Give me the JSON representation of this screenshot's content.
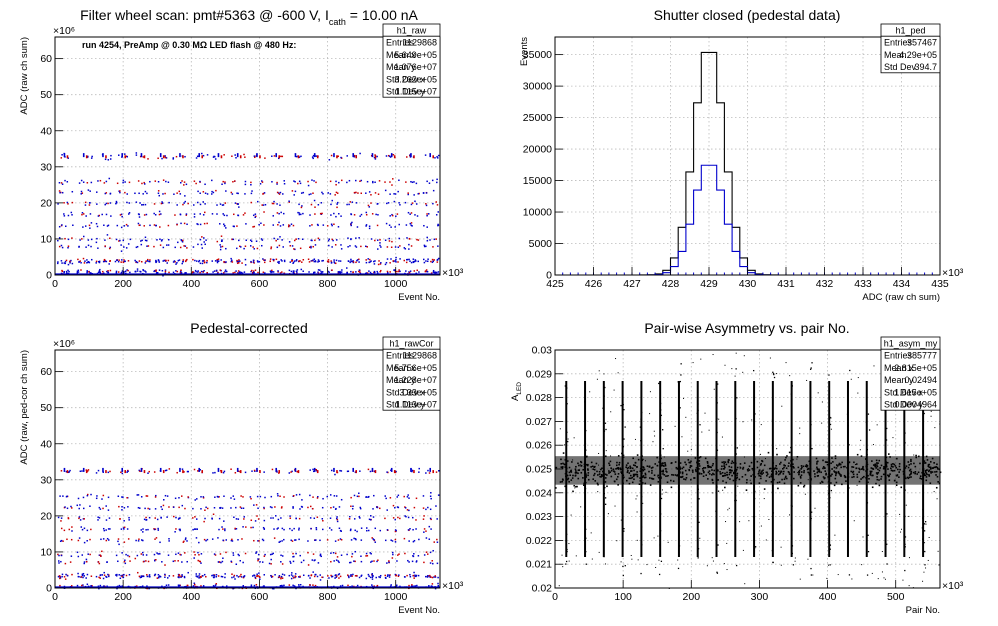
{
  "chart_data": [
    {
      "type": "scatter",
      "id": "raw",
      "title_main": "Filter wheel scan: pmt#5363 @  -600 V, I",
      "title_sub": "cath",
      "title_tail": " = 10.00 nA",
      "xlabel": "Event No.",
      "ylabel": "ADC (raw ch sum)",
      "x_exponent": "×10³",
      "y_exponent": "×10⁶",
      "xlim": [
        0,
        1130
      ],
      "ylim": [
        0,
        66
      ],
      "xticks": [
        "0",
        "200",
        "400",
        "600",
        "800",
        "1000"
      ],
      "yticks": [
        "0",
        "10",
        "20",
        "30",
        "40",
        "50",
        "60"
      ],
      "xtick_values": [
        0,
        200,
        400,
        600,
        800,
        1000
      ],
      "ytick_values": [
        0,
        10,
        20,
        30,
        40,
        50,
        60
      ],
      "annotation": "run 4254, PreAmp @ 0.30 MΩ LED flash @  480 Hz:",
      "bands": [
        1,
        4,
        8,
        10,
        14,
        17,
        20,
        23,
        26,
        33
      ],
      "cycles": 20,
      "stats_name": "h1_raw",
      "stats": [
        [
          "Entries",
          "1129868"
        ],
        [
          "Mean x",
          "5.649e+05"
        ],
        [
          "Mean y",
          "1.076e+07"
        ],
        [
          "Std Dev x",
          "3.262e+05"
        ],
        [
          "Std Dev y",
          "1.115e+07"
        ]
      ],
      "grid": true
    },
    {
      "type": "histogram",
      "id": "ped",
      "title_main": "Shutter closed (pedestal data)",
      "xlabel": "ADC (raw ch sum)",
      "ylabel": "Events",
      "x_exponent": "×10³",
      "xlim": [
        425,
        435
      ],
      "ylim": [
        0,
        37800
      ],
      "xticks": [
        "425",
        "426",
        "427",
        "428",
        "429",
        "430",
        "431",
        "432",
        "433",
        "434",
        "435"
      ],
      "yticks": [
        "0",
        "5000",
        "10000",
        "15000",
        "20000",
        "25000",
        "30000",
        "35000"
      ],
      "xtick_values": [
        425,
        426,
        427,
        428,
        429,
        430,
        431,
        432,
        433,
        434,
        435
      ],
      "ytick_values": [
        0,
        5000,
        10000,
        15000,
        20000,
        25000,
        30000,
        35000
      ],
      "series": [
        {
          "color": "#000000",
          "mean": 429.0,
          "sigma": 0.3947,
          "peak": 36500
        },
        {
          "color": "#0000cc",
          "mean": 429.0,
          "sigma": 0.3947,
          "peak": 18000
        }
      ],
      "stats_name": "h1_ped",
      "stats": [
        [
          "Entries",
          "357467"
        ],
        [
          "Mean",
          "4.29e+05"
        ],
        [
          "Std Dev",
          "394.7"
        ]
      ],
      "grid": true
    },
    {
      "type": "scatter",
      "id": "rawCor",
      "title_main": "Pedestal-corrected",
      "xlabel": "Event No.",
      "ylabel": "ADC (raw, ped-cor ch sum)",
      "x_exponent": "×10³",
      "y_exponent": "×10⁶",
      "xlim": [
        0,
        1130
      ],
      "ylim": [
        0,
        66
      ],
      "xticks": [
        "0",
        "200",
        "400",
        "600",
        "800",
        "1000"
      ],
      "yticks": [
        "0",
        "10",
        "20",
        "30",
        "40",
        "50",
        "60"
      ],
      "xtick_values": [
        0,
        200,
        400,
        600,
        800,
        1000
      ],
      "ytick_values": [
        0,
        10,
        20,
        30,
        40,
        50,
        60
      ],
      "bands": [
        0.5,
        3.5,
        7.5,
        9.5,
        13.5,
        16.5,
        19.5,
        22.5,
        25.5,
        32.5
      ],
      "cycles": 20,
      "stats_name": "h1_rawCor",
      "stats": [
        [
          "Entries",
          "1129868"
        ],
        [
          "Mean x",
          "5.756e+05"
        ],
        [
          "Mean y",
          "1.228e+07"
        ],
        [
          "Std Dev x",
          "3.33e+05"
        ],
        [
          "Std Dev y",
          "1.113e+07"
        ]
      ],
      "grid": true
    },
    {
      "type": "scatter",
      "id": "asym",
      "title_main": "Pair-wise Asymmetry vs. pair No.",
      "xlabel": "Pair No.",
      "ylabel_main": "A",
      "ylabel_sub": "LED",
      "x_exponent": "×10³",
      "xlim": [
        0,
        565
      ],
      "ylim": [
        0.02,
        0.03
      ],
      "xticks": [
        "0",
        "100",
        "200",
        "300",
        "400",
        "500"
      ],
      "yticks": [
        "0.02",
        "0.021",
        "0.022",
        "0.023",
        "0.024",
        "0.025",
        "0.026",
        "0.027",
        "0.028",
        "0.029",
        "0.03"
      ],
      "xtick_values": [
        0,
        100,
        200,
        300,
        400,
        500
      ],
      "ytick_values": [
        0.02,
        0.021,
        0.022,
        0.023,
        0.024,
        0.025,
        0.026,
        0.027,
        0.028,
        0.029,
        0.03
      ],
      "center": 0.02494,
      "spikes": 20,
      "stats_name": "h1_asym_my",
      "stats": [
        [
          "Entries",
          "385777"
        ],
        [
          "Mean x",
          "2.815e+05"
        ],
        [
          "Mean y",
          "0.02494"
        ],
        [
          "Std Dev x",
          "1.615e+05"
        ],
        [
          "Std Dev y",
          "0.0004964"
        ]
      ],
      "grid": true
    }
  ]
}
